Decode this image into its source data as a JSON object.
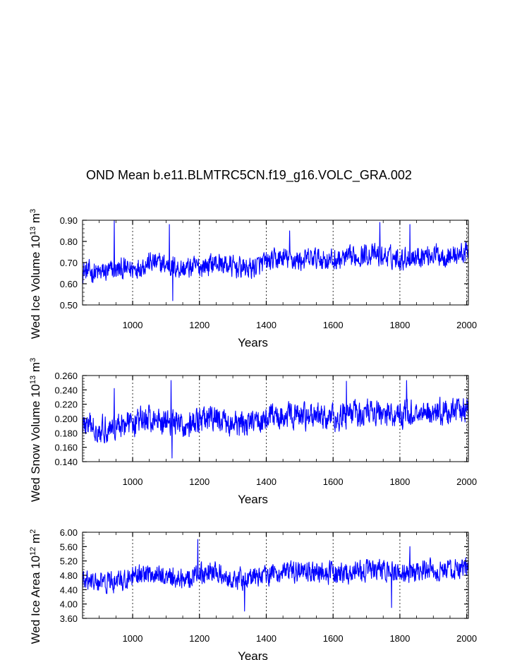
{
  "title": "OND Mean b.e11.BLMTRC5CN.f19_g16.VOLC_GRA.002",
  "chart_data": [
    {
      "type": "line",
      "xlabel": "Years",
      "ylabel_main": "Wed Ice Volume 10",
      "ylabel_exp": "13",
      "ylabel_unit": " m",
      "ylabel_unit_exp": "3",
      "xlim": [
        850,
        2005
      ],
      "ylim": [
        0.5,
        0.9
      ],
      "xticks": [
        1000,
        1200,
        1400,
        1600,
        1800,
        2000
      ],
      "xtick_labels": [
        "1000",
        "1200",
        "1400",
        "1600",
        "1800",
        "2000"
      ],
      "yticks": [
        0.5,
        0.6,
        0.7,
        0.8,
        0.9
      ],
      "ytick_labels": [
        "0.50",
        "0.60",
        "0.70",
        "0.80",
        "0.90"
      ],
      "grid_x": "dashed vertical at major x ticks",
      "series": [
        {
          "name": "ice volume",
          "color": "#0000ff",
          "x_start": 850,
          "x_end": 2005,
          "anchors_x": [
            850,
            900,
            950,
            1000,
            1050,
            1100,
            1150,
            1200,
            1250,
            1300,
            1350,
            1400,
            1450,
            1500,
            1550,
            1600,
            1650,
            1700,
            1750,
            1800,
            1850,
            1900,
            1950,
            2005
          ],
          "anchors_y": [
            0.66,
            0.65,
            0.665,
            0.67,
            0.7,
            0.69,
            0.67,
            0.68,
            0.7,
            0.68,
            0.67,
            0.7,
            0.72,
            0.71,
            0.72,
            0.71,
            0.72,
            0.74,
            0.73,
            0.72,
            0.73,
            0.74,
            0.73,
            0.75
          ],
          "amplitude": 0.045,
          "peaks": [
            [
              945,
              0.9
            ],
            [
              1110,
              0.88
            ],
            [
              1120,
              0.52
            ],
            [
              1470,
              0.85
            ],
            [
              1740,
              0.89
            ],
            [
              1830,
              0.88
            ]
          ]
        }
      ]
    },
    {
      "type": "line",
      "xlabel": "Years",
      "ylabel_main": "Wed Snow Volume 10",
      "ylabel_exp": "13",
      "ylabel_unit": " m",
      "ylabel_unit_exp": "3",
      "xlim": [
        850,
        2005
      ],
      "ylim": [
        0.14,
        0.26
      ],
      "xticks": [
        1000,
        1200,
        1400,
        1600,
        1800,
        2000
      ],
      "xtick_labels": [
        "1000",
        "1200",
        "1400",
        "1600",
        "1800",
        "2000"
      ],
      "yticks": [
        0.14,
        0.16,
        0.18,
        0.2,
        0.22,
        0.24,
        0.26
      ],
      "ytick_labels": [
        "0.140",
        "0.160",
        "0.180",
        "0.200",
        "0.220",
        "0.240",
        "0.260"
      ],
      "grid_x": "dashed vertical at major x ticks",
      "series": [
        {
          "name": "snow volume",
          "color": "#0000ff",
          "x_start": 850,
          "x_end": 2005,
          "anchors_x": [
            850,
            900,
            950,
            1000,
            1050,
            1100,
            1150,
            1200,
            1250,
            1300,
            1350,
            1400,
            1450,
            1500,
            1550,
            1600,
            1650,
            1700,
            1750,
            1800,
            1850,
            1900,
            1950,
            2005
          ],
          "anchors_y": [
            0.192,
            0.185,
            0.19,
            0.195,
            0.2,
            0.198,
            0.19,
            0.195,
            0.2,
            0.19,
            0.192,
            0.2,
            0.205,
            0.202,
            0.204,
            0.2,
            0.205,
            0.21,
            0.207,
            0.205,
            0.208,
            0.21,
            0.207,
            0.212
          ],
          "amplitude": 0.016,
          "peaks": [
            [
              945,
              0.242
            ],
            [
              1115,
              0.253
            ],
            [
              1118,
              0.145
            ],
            [
              1640,
              0.252
            ],
            [
              1820,
              0.253
            ]
          ]
        }
      ]
    },
    {
      "type": "line",
      "xlabel": "Years",
      "ylabel_main": "Wed Ice Area 10",
      "ylabel_exp": "12",
      "ylabel_unit": " m",
      "ylabel_unit_exp": "2",
      "xlim": [
        850,
        2005
      ],
      "ylim": [
        3.6,
        6.0
      ],
      "xticks": [
        1000,
        1200,
        1400,
        1600,
        1800,
        2000
      ],
      "xtick_labels": [
        "1000",
        "1200",
        "1400",
        "1600",
        "1800",
        "2000"
      ],
      "yticks": [
        3.6,
        4.0,
        4.4,
        4.8,
        5.2,
        5.6,
        6.0
      ],
      "ytick_labels": [
        "3.60",
        "4.00",
        "4.40",
        "4.80",
        "5.20",
        "5.60",
        "6.00"
      ],
      "grid_x": "dashed vertical at major x ticks",
      "series": [
        {
          "name": "ice area",
          "color": "#0000ff",
          "x_start": 850,
          "x_end": 2005,
          "anchors_x": [
            850,
            900,
            950,
            1000,
            1050,
            1100,
            1150,
            1200,
            1250,
            1300,
            1350,
            1400,
            1450,
            1500,
            1550,
            1600,
            1650,
            1700,
            1750,
            1800,
            1850,
            1900,
            1950,
            2005
          ],
          "anchors_y": [
            4.62,
            4.58,
            4.6,
            4.72,
            4.85,
            4.78,
            4.7,
            4.85,
            4.88,
            4.7,
            4.72,
            4.82,
            4.88,
            4.86,
            4.9,
            4.85,
            4.88,
            4.95,
            4.9,
            4.88,
            4.92,
            4.95,
            4.9,
            5.0
          ],
          "amplitude": 0.26,
          "peaks": [
            [
              1195,
              5.8
            ],
            [
              1335,
              3.8
            ],
            [
              1775,
              3.9
            ],
            [
              1830,
              5.6
            ]
          ]
        }
      ]
    }
  ]
}
